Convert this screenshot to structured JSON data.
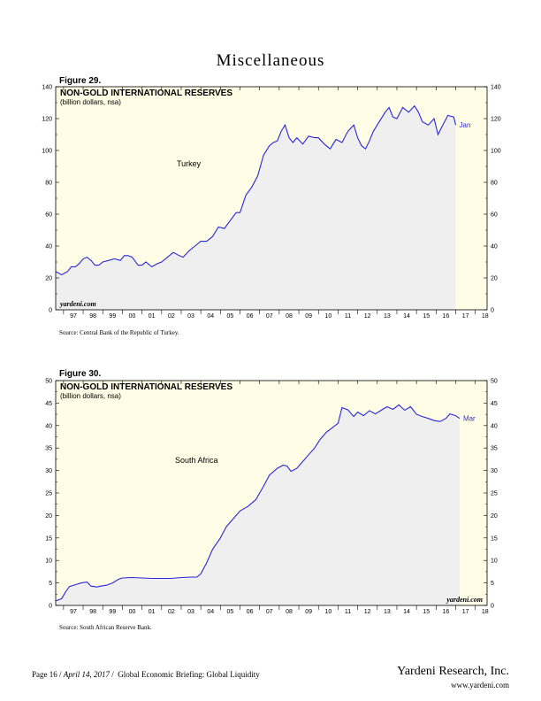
{
  "page": {
    "title": "Miscellaneous",
    "footer": {
      "page": "Page 16",
      "date": "April 14, 2017",
      "report": "Global Economic Briefing: Global Liquidity"
    },
    "brand": "Yardeni Research, Inc.",
    "website": "www.yardeni.com"
  },
  "colors": {
    "plot_bg": "#fffde6",
    "area_fill": "#efefef",
    "line": "#2828d8",
    "frame": "#000000"
  },
  "chart_data": [
    {
      "id": "fig29",
      "figure_label": "Figure 29.",
      "type": "area",
      "title": "NON-GOLD INTERNATIONAL RESERVES",
      "subtitle": "(billion dollars, nsa)",
      "country_label": "Turkey",
      "watermark": "yardeni.com",
      "source": "Source: Central Bank of the Republic of Turkey.",
      "end_label": "Jan",
      "xlim": [
        1996.6,
        2018.6
      ],
      "ylim": [
        0,
        140
      ],
      "y_ticks": [
        0,
        20,
        40,
        60,
        80,
        100,
        120,
        140
      ],
      "x_tick_labels": [
        "97",
        "98",
        "99",
        "00",
        "01",
        "02",
        "03",
        "04",
        "05",
        "06",
        "07",
        "08",
        "09",
        "10",
        "11",
        "12",
        "13",
        "14",
        "15",
        "16",
        "17",
        "18"
      ],
      "shade_end": 2017.0,
      "points": [
        [
          1996.6,
          24
        ],
        [
          1996.9,
          22
        ],
        [
          1997.2,
          24
        ],
        [
          1997.4,
          27
        ],
        [
          1997.6,
          27
        ],
        [
          1997.8,
          29
        ],
        [
          1998.0,
          32
        ],
        [
          1998.2,
          33
        ],
        [
          1998.4,
          31
        ],
        [
          1998.6,
          28
        ],
        [
          1998.8,
          28
        ],
        [
          1999.0,
          30
        ],
        [
          1999.3,
          31
        ],
        [
          1999.6,
          32
        ],
        [
          1999.9,
          31
        ],
        [
          2000.1,
          34
        ],
        [
          2000.3,
          34
        ],
        [
          2000.5,
          33
        ],
        [
          2000.8,
          28
        ],
        [
          2001.0,
          28
        ],
        [
          2001.2,
          30
        ],
        [
          2001.5,
          27
        ],
        [
          2001.8,
          29
        ],
        [
          2002.0,
          30
        ],
        [
          2002.3,
          33
        ],
        [
          2002.6,
          36
        ],
        [
          2002.9,
          34
        ],
        [
          2003.1,
          33
        ],
        [
          2003.4,
          37
        ],
        [
          2003.7,
          40
        ],
        [
          2004.0,
          43
        ],
        [
          2004.3,
          43
        ],
        [
          2004.6,
          46
        ],
        [
          2004.9,
          52
        ],
        [
          2005.2,
          51
        ],
        [
          2005.5,
          56
        ],
        [
          2005.8,
          61
        ],
        [
          2006.0,
          61
        ],
        [
          2006.3,
          72
        ],
        [
          2006.6,
          77
        ],
        [
          2006.9,
          84
        ],
        [
          2007.2,
          97
        ],
        [
          2007.5,
          103
        ],
        [
          2007.7,
          105
        ],
        [
          2007.9,
          106
        ],
        [
          2008.1,
          112
        ],
        [
          2008.3,
          116
        ],
        [
          2008.5,
          108
        ],
        [
          2008.7,
          105
        ],
        [
          2008.9,
          108
        ],
        [
          2009.2,
          104
        ],
        [
          2009.5,
          109
        ],
        [
          2009.8,
          108
        ],
        [
          2010.0,
          108
        ],
        [
          2010.3,
          104
        ],
        [
          2010.6,
          101
        ],
        [
          2010.9,
          107
        ],
        [
          2011.2,
          105
        ],
        [
          2011.5,
          112
        ],
        [
          2011.8,
          116
        ],
        [
          2012.0,
          108
        ],
        [
          2012.2,
          103
        ],
        [
          2012.4,
          101
        ],
        [
          2012.6,
          106
        ],
        [
          2012.8,
          112
        ],
        [
          2013.1,
          118
        ],
        [
          2013.4,
          124
        ],
        [
          2013.6,
          127
        ],
        [
          2013.8,
          121
        ],
        [
          2014.0,
          120
        ],
        [
          2014.3,
          127
        ],
        [
          2014.6,
          124
        ],
        [
          2014.9,
          128
        ],
        [
          2015.1,
          124
        ],
        [
          2015.3,
          118
        ],
        [
          2015.6,
          116
        ],
        [
          2015.9,
          120
        ],
        [
          2016.1,
          110
        ],
        [
          2016.3,
          115
        ],
        [
          2016.6,
          122
        ],
        [
          2016.9,
          121
        ],
        [
          2017.0,
          116
        ]
      ]
    },
    {
      "id": "fig30",
      "figure_label": "Figure 30.",
      "type": "area",
      "title": "NON-GOLD INTERNATIONAL RESERVES",
      "subtitle": "(billion dollars, nsa)",
      "country_label": "South Africa",
      "watermark": "yardeni.com",
      "source": "Source: South African Reserve Bank.",
      "end_label": "Mar",
      "xlim": [
        1996.6,
        2018.6
      ],
      "ylim": [
        0,
        50
      ],
      "y_ticks": [
        0,
        5,
        10,
        15,
        20,
        25,
        30,
        35,
        40,
        45,
        50
      ],
      "x_tick_labels": [
        "97",
        "98",
        "99",
        "00",
        "01",
        "02",
        "03",
        "04",
        "05",
        "06",
        "07",
        "08",
        "09",
        "10",
        "11",
        "12",
        "13",
        "14",
        "15",
        "16",
        "17",
        "18"
      ],
      "shade_end": 2017.2,
      "points": [
        [
          1996.6,
          1.0
        ],
        [
          1996.9,
          1.5
        ],
        [
          1997.1,
          3.0
        ],
        [
          1997.3,
          4.2
        ],
        [
          1997.6,
          4.6
        ],
        [
          1997.9,
          5.0
        ],
        [
          1998.2,
          5.2
        ],
        [
          1998.4,
          4.3
        ],
        [
          1998.7,
          4.1
        ],
        [
          1998.9,
          4.3
        ],
        [
          1999.2,
          4.5
        ],
        [
          1999.5,
          5.0
        ],
        [
          1999.8,
          5.8
        ],
        [
          2000.0,
          6.1
        ],
        [
          2000.5,
          6.2
        ],
        [
          2001.0,
          6.1
        ],
        [
          2001.5,
          6.0
        ],
        [
          2002.0,
          6.0
        ],
        [
          2002.5,
          6.0
        ],
        [
          2003.0,
          6.2
        ],
        [
          2003.5,
          6.3
        ],
        [
          2003.8,
          6.3
        ],
        [
          2004.0,
          7.0
        ],
        [
          2004.3,
          9.5
        ],
        [
          2004.6,
          12.5
        ],
        [
          2005.0,
          15.0
        ],
        [
          2005.3,
          17.5
        ],
        [
          2005.7,
          19.5
        ],
        [
          2006.0,
          21.0
        ],
        [
          2006.4,
          22.0
        ],
        [
          2006.8,
          23.5
        ],
        [
          2007.2,
          26.5
        ],
        [
          2007.5,
          29.0
        ],
        [
          2007.9,
          30.5
        ],
        [
          2008.2,
          31.2
        ],
        [
          2008.4,
          31.0
        ],
        [
          2008.6,
          29.8
        ],
        [
          2008.9,
          30.5
        ],
        [
          2009.2,
          32.0
        ],
        [
          2009.5,
          33.5
        ],
        [
          2009.8,
          35.0
        ],
        [
          2010.1,
          37.0
        ],
        [
          2010.4,
          38.5
        ],
        [
          2010.7,
          39.5
        ],
        [
          2011.0,
          40.5
        ],
        [
          2011.2,
          44.0
        ],
        [
          2011.5,
          43.5
        ],
        [
          2011.8,
          42.0
        ],
        [
          2012.0,
          43.0
        ],
        [
          2012.3,
          42.2
        ],
        [
          2012.6,
          43.3
        ],
        [
          2012.9,
          42.6
        ],
        [
          2013.2,
          43.4
        ],
        [
          2013.5,
          44.2
        ],
        [
          2013.8,
          43.6
        ],
        [
          2014.1,
          44.6
        ],
        [
          2014.4,
          43.4
        ],
        [
          2014.7,
          44.2
        ],
        [
          2015.0,
          42.5
        ],
        [
          2015.3,
          42.0
        ],
        [
          2015.6,
          41.6
        ],
        [
          2015.9,
          41.1
        ],
        [
          2016.2,
          40.9
        ],
        [
          2016.5,
          41.6
        ],
        [
          2016.7,
          42.6
        ],
        [
          2017.0,
          42.2
        ],
        [
          2017.2,
          41.6
        ]
      ]
    }
  ]
}
